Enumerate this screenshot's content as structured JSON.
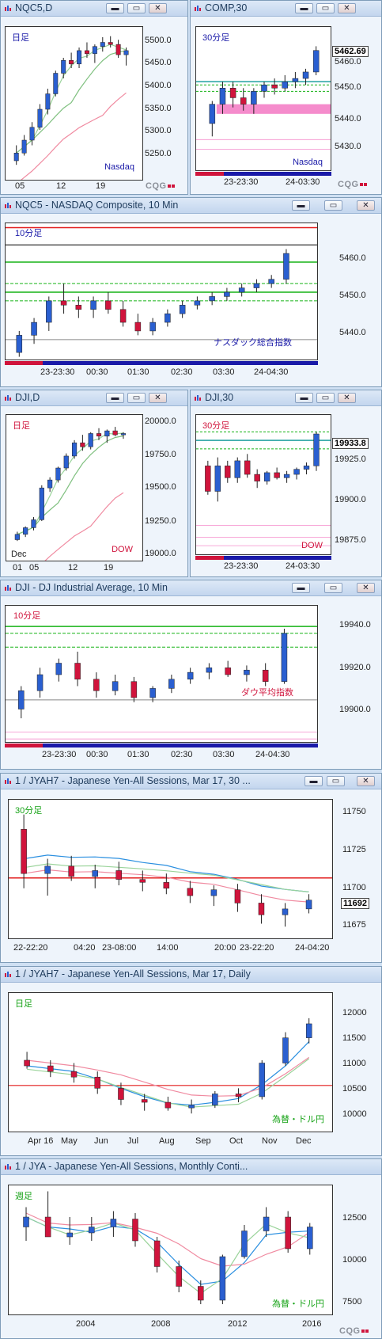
{
  "colors": {
    "up": "#2a5fd0",
    "down": "#d0143c",
    "green": "#17b317",
    "pinkband": "#f58ccc",
    "red": "#e21b1b"
  },
  "windows": [
    {
      "id": "nqc5d",
      "title": "NQC5,D",
      "period_label": "日足",
      "instrument_label": "Nasdaq",
      "y_ticks": [
        "5500.0",
        "5450.0",
        "5400.0",
        "5350.0",
        "5300.0",
        "5250.0"
      ],
      "x_ticks": [
        "05",
        "12",
        "19"
      ],
      "logo": "CQG"
    },
    {
      "id": "comp30",
      "title": "COMP,30",
      "period_label": "30分足",
      "instrument_label": "Nasdaq",
      "last_price": "5462.69",
      "y_ticks": [
        "5460.0",
        "5450.0",
        "5440.0",
        "5430.0"
      ],
      "x_ticks": [
        "23-23:30",
        "24-03:30"
      ],
      "logo": "CQG"
    },
    {
      "id": "nqc5_10",
      "title": "NQC5 - NASDAQ Composite, 10 Min",
      "period_label": "10分足",
      "instrument_label": "ナスダック総合指数",
      "y_ticks": [
        "5460.0",
        "5450.0",
        "5440.0"
      ],
      "x_ticks": [
        "23-23:30",
        "00:30",
        "01:30",
        "02:30",
        "03:30",
        "24-04:30"
      ]
    },
    {
      "id": "djid",
      "title": "DJI,D",
      "period_label": "日足",
      "instrument_label": "DOW",
      "y_ticks": [
        "20000.0",
        "19750.0",
        "19500.0",
        "19250.0",
        "19000.0"
      ],
      "x_ticks": [
        "01",
        "05",
        "12",
        "19"
      ],
      "x_extra": "Dec"
    },
    {
      "id": "dji30",
      "title": "DJI,30",
      "period_label": "30分足",
      "instrument_label": "DOW",
      "last_price": "19933.8",
      "y_ticks": [
        "19925.0",
        "19900.0",
        "19875.0"
      ],
      "x_ticks": [
        "23-23:30",
        "24-03:30"
      ]
    },
    {
      "id": "dji10",
      "title": "DJI - DJ Industrial Average, 10 Min",
      "period_label": "10分足",
      "instrument_label": "ダウ平均指数",
      "y_ticks": [
        "19940.0",
        "19920.0",
        "19900.0"
      ],
      "x_ticks": [
        "23-23:30",
        "00:30",
        "01:30",
        "02:30",
        "03:30",
        "24-04:30"
      ]
    },
    {
      "id": "jyah7_30",
      "title": "1 / JYAH7 - Japanese Yen-All Sessions, Mar 17, 30 ...",
      "period_label": "30分足",
      "last_price": "11692",
      "y_ticks": [
        "11750",
        "11725",
        "11700",
        "11675"
      ],
      "x_ticks": [
        "22-22:20",
        "04:20",
        "23-08:00",
        "14:00",
        "20:00",
        "23-22:20",
        "24-04:20"
      ]
    },
    {
      "id": "jyah7_d",
      "title": "1 / JYAH7 - Japanese Yen-All Sessions, Mar 17, Daily",
      "period_label": "日足",
      "instrument_label": "為替・ドル円",
      "y_ticks": [
        "12000",
        "11500",
        "11000",
        "10500",
        "10000"
      ],
      "x_ticks": [
        "Apr 16",
        "May",
        "Jun",
        "Jul",
        "Aug",
        "Sep",
        "Oct",
        "Nov",
        "Dec"
      ]
    },
    {
      "id": "jya_m",
      "title": "1 / JYA - Japanese Yen-All Sessions, Monthly Conti...",
      "period_label": "週足",
      "instrument_label": "為替・ドル円",
      "y_ticks": [
        "12500",
        "10000",
        "7500"
      ],
      "x_ticks": [
        "2004",
        "2008",
        "2012",
        "2016"
      ],
      "logo": "CQG"
    }
  ],
  "chart_data": [
    {
      "type": "candlestick",
      "window": "NQC5,D",
      "ylim": [
        5230,
        5530
      ],
      "values": [
        [
          5270,
          5300,
          5262,
          5285
        ],
        [
          5285,
          5320,
          5280,
          5310
        ],
        [
          5310,
          5345,
          5300,
          5335
        ],
        [
          5335,
          5380,
          5330,
          5370
        ],
        [
          5370,
          5410,
          5360,
          5400
        ],
        [
          5400,
          5445,
          5395,
          5440
        ],
        [
          5440,
          5470,
          5430,
          5465
        ],
        [
          5465,
          5480,
          5450,
          5458
        ],
        [
          5458,
          5490,
          5450,
          5484
        ],
        [
          5484,
          5500,
          5470,
          5478
        ],
        [
          5478,
          5496,
          5460,
          5492
        ],
        [
          5492,
          5510,
          5482,
          5500
        ],
        [
          5500,
          5512,
          5490,
          5496
        ],
        [
          5496,
          5505,
          5470,
          5476
        ],
        [
          5476,
          5490,
          5455,
          5484
        ]
      ]
    },
    {
      "type": "candlestick",
      "window": "COMP,30",
      "ylim": [
        5425,
        5470
      ],
      "values": [
        [
          5440,
          5447,
          5436,
          5446
        ],
        [
          5446,
          5453,
          5443,
          5451
        ],
        [
          5451,
          5453,
          5445,
          5448
        ],
        [
          5448,
          5451,
          5444,
          5446
        ],
        [
          5446,
          5451,
          5443,
          5450
        ],
        [
          5450,
          5453,
          5448,
          5452
        ],
        [
          5452,
          5454,
          5449,
          5451
        ],
        [
          5451,
          5455,
          5450,
          5453
        ],
        [
          5453,
          5456,
          5451,
          5454
        ],
        [
          5454,
          5457,
          5452,
          5456
        ],
        [
          5456,
          5464,
          5455,
          5462.69
        ]
      ]
    },
    {
      "type": "candlestick",
      "window": "NQC5 10 Min",
      "ylim": [
        5436,
        5468
      ],
      "values": [
        [
          5438,
          5443,
          5437,
          5442
        ],
        [
          5442,
          5446,
          5440,
          5445
        ],
        [
          5445,
          5451,
          5443,
          5450
        ],
        [
          5450,
          5454,
          5447,
          5449
        ],
        [
          5449,
          5451,
          5446,
          5448
        ],
        [
          5448,
          5451,
          5446,
          5450
        ],
        [
          5450,
          5452,
          5447,
          5448
        ],
        [
          5448,
          5450,
          5444,
          5445
        ],
        [
          5445,
          5447,
          5442,
          5443
        ],
        [
          5443,
          5446,
          5442,
          5445
        ],
        [
          5445,
          5448,
          5444,
          5447
        ],
        [
          5447,
          5450,
          5446,
          5449
        ],
        [
          5449,
          5451,
          5448,
          5450
        ],
        [
          5450,
          5452,
          5449,
          5451
        ],
        [
          5451,
          5453,
          5450,
          5452
        ],
        [
          5452,
          5454,
          5451,
          5453
        ],
        [
          5453,
          5455,
          5452,
          5454
        ],
        [
          5454,
          5456,
          5453,
          5455
        ],
        [
          5455,
          5462,
          5454,
          5461
        ]
      ]
    },
    {
      "type": "candlestick",
      "window": "DJI,D",
      "ylim": [
        18980,
        20090
      ],
      "values": [
        [
          19150,
          19210,
          19140,
          19190
        ],
        [
          19190,
          19250,
          19170,
          19240
        ],
        [
          19240,
          19320,
          19220,
          19300
        ],
        [
          19300,
          19560,
          19290,
          19540
        ],
        [
          19540,
          19620,
          19510,
          19600
        ],
        [
          19600,
          19700,
          19580,
          19690
        ],
        [
          19690,
          19800,
          19670,
          19780
        ],
        [
          19780,
          19900,
          19760,
          19880
        ],
        [
          19880,
          19940,
          19820,
          19850
        ],
        [
          19850,
          19960,
          19830,
          19950
        ],
        [
          19950,
          19990,
          19900,
          19930
        ],
        [
          19930,
          19980,
          19880,
          19970
        ],
        [
          19970,
          20000,
          19930,
          19940
        ],
        [
          19940,
          19960,
          19910,
          19950
        ]
      ]
    },
    {
      "type": "candlestick",
      "window": "DJI,30",
      "ylim": [
        19862,
        19945
      ],
      "values": [
        [
          19915,
          19918,
          19898,
          19900
        ],
        [
          19900,
          19920,
          19894,
          19915
        ],
        [
          19915,
          19918,
          19905,
          19908
        ],
        [
          19908,
          19920,
          19905,
          19918
        ],
        [
          19918,
          19922,
          19908,
          19910
        ],
        [
          19910,
          19913,
          19902,
          19906
        ],
        [
          19906,
          19912,
          19904,
          19911
        ],
        [
          19911,
          19914,
          19907,
          19908
        ],
        [
          19908,
          19912,
          19905,
          19910
        ],
        [
          19910,
          19914,
          19907,
          19913
        ],
        [
          19913,
          19917,
          19910,
          19915
        ],
        [
          19915,
          19935,
          19912,
          19933.8
        ]
      ]
    },
    {
      "type": "candlestick",
      "window": "DJI 10 Min",
      "ylim": [
        19885,
        19945
      ],
      "values": [
        [
          19900,
          19910,
          19896,
          19908
        ],
        [
          19908,
          19918,
          19905,
          19915
        ],
        [
          19915,
          19922,
          19912,
          19920
        ],
        [
          19920,
          19925,
          19910,
          19913
        ],
        [
          19913,
          19916,
          19905,
          19908
        ],
        [
          19908,
          19915,
          19906,
          19912
        ],
        [
          19912,
          19914,
          19903,
          19905
        ],
        [
          19905,
          19910,
          19903,
          19909
        ],
        [
          19909,
          19915,
          19907,
          19913
        ],
        [
          19913,
          19918,
          19911,
          19916
        ],
        [
          19916,
          19920,
          19913,
          19918
        ],
        [
          19918,
          19921,
          19914,
          19915
        ],
        [
          19915,
          19919,
          19912,
          19917
        ],
        [
          19917,
          19920,
          19910,
          19912
        ],
        [
          19912,
          19935,
          19911,
          19933
        ]
      ]
    },
    {
      "type": "candlestick",
      "window": "JYAH7 30",
      "ylim": [
        11665,
        11760
      ],
      "values": [
        [
          11740,
          11750,
          11700,
          11710
        ],
        [
          11710,
          11720,
          11695,
          11715
        ],
        [
          11715,
          11722,
          11705,
          11708
        ],
        [
          11708,
          11716,
          11700,
          11712
        ],
        [
          11712,
          11718,
          11702,
          11706
        ],
        [
          11706,
          11712,
          11698,
          11704
        ],
        [
          11704,
          11710,
          11696,
          11700
        ],
        [
          11700,
          11705,
          11690,
          11695
        ],
        [
          11695,
          11702,
          11688,
          11699
        ],
        [
          11699,
          11703,
          11684,
          11690
        ],
        [
          11690,
          11696,
          11676,
          11682
        ],
        [
          11682,
          11690,
          11674,
          11686
        ],
        [
          11686,
          11696,
          11683,
          11692
        ]
      ]
    },
    {
      "type": "candlestick",
      "window": "JYAH7 Daily",
      "ylim": [
        9700,
        12200
      ],
      "values": [
        [
          11000,
          11150,
          10850,
          10900
        ],
        [
          10900,
          11000,
          10700,
          10800
        ],
        [
          10800,
          10950,
          10600,
          10700
        ],
        [
          10700,
          10800,
          10400,
          10500
        ],
        [
          10500,
          10600,
          10200,
          10300
        ],
        [
          10300,
          10400,
          10100,
          10250
        ],
        [
          10250,
          10350,
          10100,
          10150
        ],
        [
          10150,
          10300,
          10050,
          10200
        ],
        [
          10200,
          10450,
          10150,
          10400
        ],
        [
          10400,
          10500,
          10250,
          10350
        ],
        [
          10350,
          11000,
          10300,
          10950
        ],
        [
          10950,
          11500,
          10900,
          11400
        ],
        [
          11400,
          11750,
          11300,
          11650
        ]
      ]
    },
    {
      "type": "candlestick",
      "window": "JYA Monthly",
      "ylim": [
        7000,
        13600
      ],
      "values": [
        [
          11500,
          12500,
          10800,
          12000
        ],
        [
          12000,
          13300,
          11500,
          11000
        ],
        [
          11000,
          12000,
          10600,
          11200
        ],
        [
          11200,
          12000,
          10800,
          11500
        ],
        [
          11500,
          12300,
          11000,
          11900
        ],
        [
          11900,
          12200,
          10500,
          10800
        ],
        [
          10800,
          11000,
          9200,
          9500
        ],
        [
          9500,
          9800,
          8200,
          8500
        ],
        [
          8500,
          8800,
          7600,
          7800
        ],
        [
          7800,
          10100,
          7600,
          10000
        ],
        [
          10000,
          11600,
          9900,
          11300
        ],
        [
          11300,
          12500,
          11000,
          12000
        ],
        [
          12000,
          12300,
          10200,
          10400
        ],
        [
          10400,
          11700,
          10100,
          11500
        ]
      ]
    }
  ]
}
